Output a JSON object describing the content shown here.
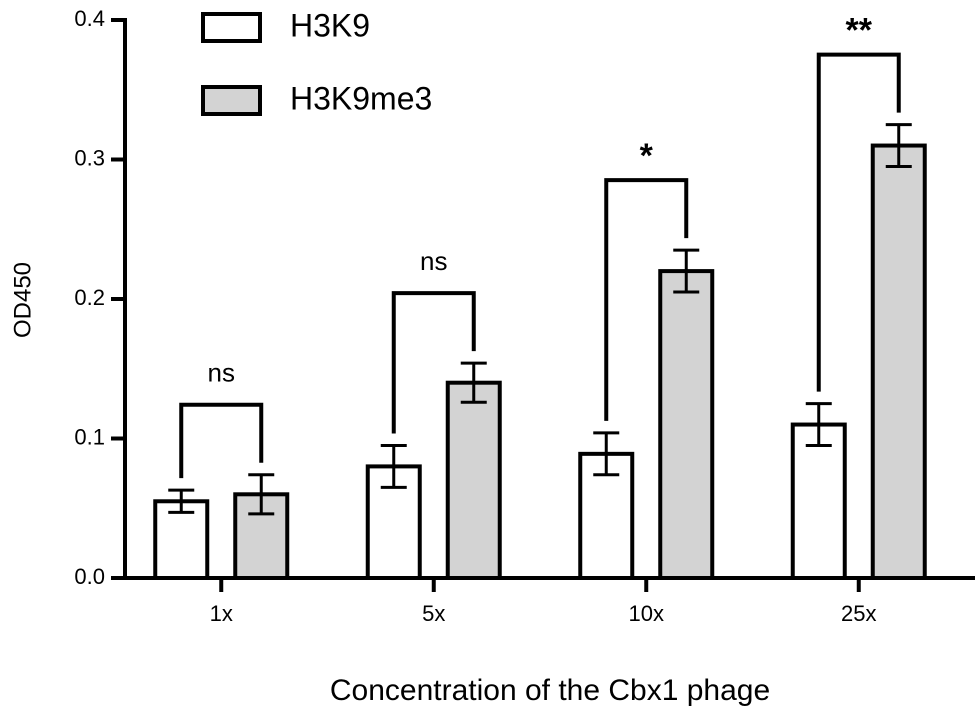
{
  "chart_data": {
    "type": "bar",
    "x_label": "Concentration of the Cbx1 phage",
    "y_label": "OD450",
    "categories": [
      "1x",
      "5x",
      "10x",
      "25x"
    ],
    "series": [
      {
        "name": "H3K9",
        "color": "#ffffff",
        "values": [
          0.055,
          0.08,
          0.089,
          0.11
        ],
        "errors": [
          0.008,
          0.015,
          0.015,
          0.015
        ]
      },
      {
        "name": "H3K9me3",
        "color": "#d3d3d3",
        "values": [
          0.06,
          0.14,
          0.22,
          0.31
        ],
        "errors": [
          0.014,
          0.014,
          0.015,
          0.015
        ]
      }
    ],
    "annotations": [
      "ns",
      "ns",
      "*",
      "**"
    ],
    "ylim": [
      0,
      0.4
    ],
    "yticks": [
      {
        "value": 0,
        "label": "0.0"
      },
      0.1,
      0.2,
      0.3,
      0.4
    ],
    "legend": "top-left"
  }
}
